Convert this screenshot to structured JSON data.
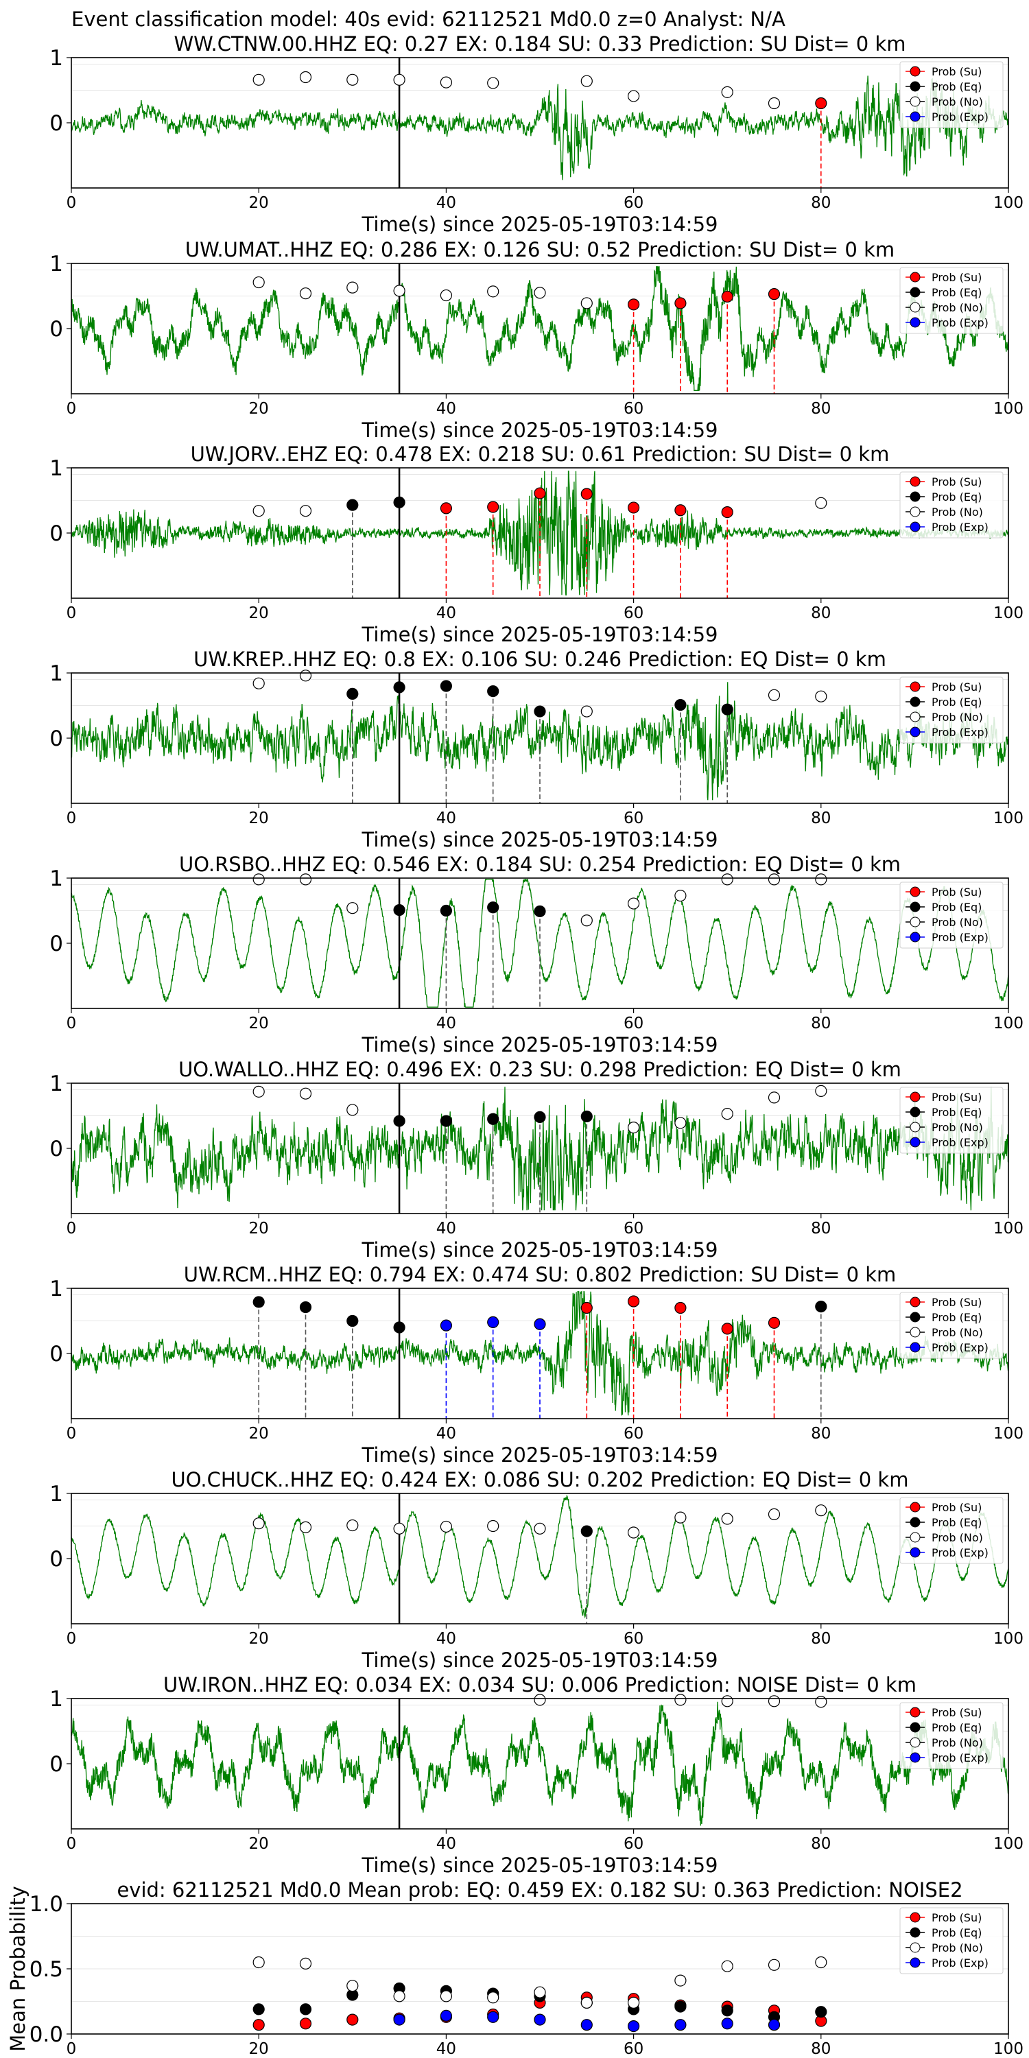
{
  "figure_title": "Event classification model: 40s evid: 62112521 Md0.0 z=0 Analyst: N/A",
  "legend": [
    {
      "label": "Prob (Su)",
      "color": "#ff0000"
    },
    {
      "label": "Prob (Eq)",
      "color": "#000000"
    },
    {
      "label": "Prob (No)",
      "color": "#ffffff"
    },
    {
      "label": "Prob (Exp)",
      "color": "#0000ff"
    }
  ],
  "colors": {
    "waveform": "#008000",
    "su": "#ff0000",
    "eq": "#000000",
    "no": "#ffffff",
    "exp": "#0000ff",
    "pick": "#000000"
  },
  "chart_data": [
    {
      "type": "line",
      "title": "WW.CTNW.00.HHZ   EQ: 0.27  EX: 0.184  SU: 0.33   Prediction: SU    Dist= 0 km",
      "xlabel": "Time(s) since 2025-05-19T03:14:59",
      "xlim": [
        0,
        100
      ],
      "ylim": [
        -1,
        1
      ],
      "xticks": [
        "0",
        "20",
        "40",
        "60",
        "80",
        "100"
      ],
      "yticks": [
        "1",
        "0"
      ],
      "pick_time": 35,
      "markers": [
        {
          "x": 20,
          "y": 0.66,
          "cls": "no"
        },
        {
          "x": 25,
          "y": 0.7,
          "cls": "no"
        },
        {
          "x": 30,
          "y": 0.66,
          "cls": "no"
        },
        {
          "x": 35,
          "y": 0.66,
          "cls": "no"
        },
        {
          "x": 40,
          "y": 0.62,
          "cls": "no"
        },
        {
          "x": 45,
          "y": 0.61,
          "cls": "no"
        },
        {
          "x": 55,
          "y": 0.64,
          "cls": "no"
        },
        {
          "x": 60,
          "y": 0.41,
          "cls": "no"
        },
        {
          "x": 70,
          "y": 0.47,
          "cls": "no"
        },
        {
          "x": 75,
          "y": 0.3,
          "cls": "no"
        },
        {
          "x": 80,
          "y": 0.3,
          "cls": "su"
        }
      ],
      "wave": {
        "seed": 11,
        "style": "noise",
        "base": 0.12,
        "bursts": [
          [
            50,
            56,
            0.45
          ],
          [
            80,
            100,
            0.4
          ]
        ],
        "clip": 0.9
      }
    },
    {
      "type": "line",
      "title": "UW.UMAT..HHZ   EQ: 0.286  EX: 0.126  SU: 0.52   Prediction: SU    Dist= 0 km",
      "xlabel": "Time(s) since 2025-05-19T03:14:59",
      "xlim": [
        0,
        100
      ],
      "ylim": [
        -1,
        1
      ],
      "xticks": [
        "0",
        "20",
        "40",
        "60",
        "80",
        "100"
      ],
      "yticks": [
        "1",
        "0"
      ],
      "pick_time": 35,
      "markers": [
        {
          "x": 20,
          "y": 0.71,
          "cls": "no"
        },
        {
          "x": 25,
          "y": 0.54,
          "cls": "no"
        },
        {
          "x": 30,
          "y": 0.63,
          "cls": "no"
        },
        {
          "x": 35,
          "y": 0.58,
          "cls": "no"
        },
        {
          "x": 40,
          "y": 0.51,
          "cls": "no"
        },
        {
          "x": 45,
          "y": 0.57,
          "cls": "no"
        },
        {
          "x": 50,
          "y": 0.55,
          "cls": "no"
        },
        {
          "x": 55,
          "y": 0.39,
          "cls": "no"
        },
        {
          "x": 60,
          "y": 0.37,
          "cls": "su"
        },
        {
          "x": 65,
          "y": 0.39,
          "cls": "su"
        },
        {
          "x": 70,
          "y": 0.49,
          "cls": "su"
        },
        {
          "x": 75,
          "y": 0.53,
          "cls": "su"
        }
      ],
      "wave": {
        "seed": 23,
        "style": "lowfreq",
        "base": 0.35,
        "bursts": [
          [
            60,
            75,
            0.4
          ]
        ],
        "clip": 0.95
      }
    },
    {
      "type": "line",
      "title": "UW.JORV..EHZ   EQ: 0.478  EX: 0.218  SU: 0.61   Prediction: SU    Dist= 0 km",
      "xlabel": "Time(s) since 2025-05-19T03:14:59",
      "xlim": [
        0,
        100
      ],
      "ylim": [
        -1,
        1
      ],
      "xticks": [
        "0",
        "20",
        "40",
        "60",
        "80",
        "100"
      ],
      "yticks": [
        "1",
        "0"
      ],
      "pick_time": 35,
      "markers": [
        {
          "x": 20,
          "y": 0.34,
          "cls": "no"
        },
        {
          "x": 25,
          "y": 0.34,
          "cls": "no"
        },
        {
          "x": 30,
          "y": 0.43,
          "cls": "eq"
        },
        {
          "x": 35,
          "y": 0.47,
          "cls": "eq"
        },
        {
          "x": 40,
          "y": 0.38,
          "cls": "su"
        },
        {
          "x": 45,
          "y": 0.4,
          "cls": "su"
        },
        {
          "x": 50,
          "y": 0.61,
          "cls": "su"
        },
        {
          "x": 55,
          "y": 0.6,
          "cls": "su"
        },
        {
          "x": 60,
          "y": 0.39,
          "cls": "su"
        },
        {
          "x": 65,
          "y": 0.35,
          "cls": "su"
        },
        {
          "x": 70,
          "y": 0.32,
          "cls": "su"
        },
        {
          "x": 80,
          "y": 0.46,
          "cls": "no"
        }
      ],
      "wave": {
        "seed": 37,
        "style": "quiet",
        "base": 0.05,
        "bursts": [
          [
            0,
            12,
            0.2
          ],
          [
            12,
            30,
            0.08
          ],
          [
            44,
            60,
            0.7
          ],
          [
            60,
            70,
            0.15
          ]
        ],
        "clip": 0.95
      }
    },
    {
      "type": "line",
      "title": "UW.KREP..HHZ   EQ: 0.8  EX: 0.106  SU: 0.246   Prediction: EQ    Dist= 0 km",
      "xlabel": "Time(s) since 2025-05-19T03:14:59",
      "xlim": [
        0,
        100
      ],
      "ylim": [
        -1,
        1
      ],
      "xticks": [
        "0",
        "20",
        "40",
        "60",
        "80",
        "100"
      ],
      "yticks": [
        "1",
        "0"
      ],
      "pick_time": 35,
      "markers": [
        {
          "x": 20,
          "y": 0.84,
          "cls": "no"
        },
        {
          "x": 25,
          "y": 0.96,
          "cls": "no"
        },
        {
          "x": 30,
          "y": 0.68,
          "cls": "eq"
        },
        {
          "x": 35,
          "y": 0.78,
          "cls": "eq"
        },
        {
          "x": 40,
          "y": 0.8,
          "cls": "eq"
        },
        {
          "x": 45,
          "y": 0.72,
          "cls": "eq"
        },
        {
          "x": 50,
          "y": 0.41,
          "cls": "eq"
        },
        {
          "x": 55,
          "y": 0.41,
          "cls": "no"
        },
        {
          "x": 65,
          "y": 0.51,
          "cls": "eq"
        },
        {
          "x": 70,
          "y": 0.44,
          "cls": "eq"
        },
        {
          "x": 75,
          "y": 0.66,
          "cls": "no"
        },
        {
          "x": 80,
          "y": 0.64,
          "cls": "no"
        }
      ],
      "wave": {
        "seed": 41,
        "style": "noise",
        "base": 0.3,
        "bursts": [
          [
            65,
            72,
            0.3
          ]
        ],
        "clip": 0.95
      }
    },
    {
      "type": "line",
      "title": "UO.RSBO..HHZ   EQ: 0.546  EX: 0.184  SU: 0.254   Prediction: EQ    Dist= 0 km",
      "xlabel": "Time(s) since 2025-05-19T03:14:59",
      "xlim": [
        0,
        100
      ],
      "ylim": [
        -1,
        1
      ],
      "xticks": [
        "0",
        "20",
        "40",
        "60",
        "80",
        "100"
      ],
      "yticks": [
        "1",
        "0"
      ],
      "pick_time": 35,
      "markers": [
        {
          "x": 20,
          "y": 0.98,
          "cls": "no"
        },
        {
          "x": 25,
          "y": 0.98,
          "cls": "no"
        },
        {
          "x": 30,
          "y": 0.54,
          "cls": "no"
        },
        {
          "x": 35,
          "y": 0.51,
          "cls": "eq"
        },
        {
          "x": 40,
          "y": 0.5,
          "cls": "eq"
        },
        {
          "x": 45,
          "y": 0.55,
          "cls": "eq"
        },
        {
          "x": 50,
          "y": 0.49,
          "cls": "eq"
        },
        {
          "x": 55,
          "y": 0.35,
          "cls": "no"
        },
        {
          "x": 60,
          "y": 0.61,
          "cls": "no"
        },
        {
          "x": 65,
          "y": 0.73,
          "cls": "no"
        },
        {
          "x": 70,
          "y": 0.98,
          "cls": "no"
        },
        {
          "x": 75,
          "y": 0.98,
          "cls": "no"
        },
        {
          "x": 80,
          "y": 0.98,
          "cls": "no"
        }
      ],
      "wave": {
        "seed": 53,
        "style": "sine",
        "base": 0.55,
        "bursts": [
          [
            33,
            50,
            0.4
          ]
        ],
        "clip": 0.98
      }
    },
    {
      "type": "line",
      "title": "UO.WALLO..HHZ   EQ: 0.496  EX: 0.23  SU: 0.298   Prediction: EQ    Dist= 0 km",
      "xlabel": "Time(s) since 2025-05-19T03:14:59",
      "xlim": [
        0,
        100
      ],
      "ylim": [
        -1,
        1
      ],
      "xticks": [
        "0",
        "20",
        "40",
        "60",
        "80",
        "100"
      ],
      "yticks": [
        "1",
        "0"
      ],
      "pick_time": 35,
      "markers": [
        {
          "x": 20,
          "y": 0.87,
          "cls": "no"
        },
        {
          "x": 25,
          "y": 0.84,
          "cls": "no"
        },
        {
          "x": 30,
          "y": 0.59,
          "cls": "no"
        },
        {
          "x": 35,
          "y": 0.42,
          "cls": "eq"
        },
        {
          "x": 40,
          "y": 0.42,
          "cls": "eq"
        },
        {
          "x": 45,
          "y": 0.45,
          "cls": "eq"
        },
        {
          "x": 50,
          "y": 0.48,
          "cls": "eq"
        },
        {
          "x": 55,
          "y": 0.49,
          "cls": "eq"
        },
        {
          "x": 60,
          "y": 0.32,
          "cls": "no"
        },
        {
          "x": 65,
          "y": 0.39,
          "cls": "no"
        },
        {
          "x": 70,
          "y": 0.53,
          "cls": "no"
        },
        {
          "x": 75,
          "y": 0.78,
          "cls": "no"
        },
        {
          "x": 80,
          "y": 0.88,
          "cls": "no"
        }
      ],
      "wave": {
        "seed": 67,
        "style": "noise",
        "base": 0.35,
        "bursts": [
          [
            44,
            57,
            0.45
          ],
          [
            90,
            100,
            0.3
          ]
        ],
        "clip": 0.95
      }
    },
    {
      "type": "line",
      "title": "UW.RCM..HHZ   EQ: 0.794  EX: 0.474  SU: 0.802   Prediction: SU    Dist= 0 km",
      "xlabel": "Time(s) since 2025-05-19T03:14:59",
      "xlim": [
        0,
        100
      ],
      "ylim": [
        -1,
        1
      ],
      "xticks": [
        "0",
        "20",
        "40",
        "60",
        "80",
        "100"
      ],
      "yticks": [
        "1",
        "0"
      ],
      "pick_time": 35,
      "markers": [
        {
          "x": 20,
          "y": 0.79,
          "cls": "eq"
        },
        {
          "x": 25,
          "y": 0.71,
          "cls": "eq"
        },
        {
          "x": 30,
          "y": 0.5,
          "cls": "eq"
        },
        {
          "x": 35,
          "y": 0.4,
          "cls": "eq"
        },
        {
          "x": 40,
          "y": 0.43,
          "cls": "exp"
        },
        {
          "x": 45,
          "y": 0.48,
          "cls": "exp"
        },
        {
          "x": 50,
          "y": 0.45,
          "cls": "exp"
        },
        {
          "x": 55,
          "y": 0.7,
          "cls": "su"
        },
        {
          "x": 60,
          "y": 0.8,
          "cls": "su"
        },
        {
          "x": 65,
          "y": 0.7,
          "cls": "su"
        },
        {
          "x": 70,
          "y": 0.38,
          "cls": "su"
        },
        {
          "x": 75,
          "y": 0.47,
          "cls": "su"
        },
        {
          "x": 80,
          "y": 0.72,
          "cls": "eq"
        }
      ],
      "wave": {
        "seed": 79,
        "style": "noise",
        "base": 0.15,
        "bursts": [
          [
            50,
            62,
            0.55
          ],
          [
            62,
            75,
            0.25
          ]
        ],
        "clip": 0.95
      }
    },
    {
      "type": "line",
      "title": "UO.CHUCK..HHZ   EQ: 0.424  EX: 0.086  SU: 0.202   Prediction: EQ    Dist= 0 km",
      "xlabel": "Time(s) since 2025-05-19T03:14:59",
      "xlim": [
        0,
        100
      ],
      "ylim": [
        -1,
        1
      ],
      "xticks": [
        "0",
        "20",
        "40",
        "60",
        "80",
        "100"
      ],
      "yticks": [
        "1",
        "0"
      ],
      "pick_time": 35,
      "markers": [
        {
          "x": 20,
          "y": 0.54,
          "cls": "no"
        },
        {
          "x": 25,
          "y": 0.48,
          "cls": "no"
        },
        {
          "x": 30,
          "y": 0.51,
          "cls": "no"
        },
        {
          "x": 35,
          "y": 0.46,
          "cls": "no"
        },
        {
          "x": 40,
          "y": 0.49,
          "cls": "no"
        },
        {
          "x": 45,
          "y": 0.5,
          "cls": "no"
        },
        {
          "x": 50,
          "y": 0.46,
          "cls": "no"
        },
        {
          "x": 55,
          "y": 0.42,
          "cls": "eq"
        },
        {
          "x": 60,
          "y": 0.4,
          "cls": "no"
        },
        {
          "x": 65,
          "y": 0.63,
          "cls": "no"
        },
        {
          "x": 70,
          "y": 0.61,
          "cls": "no"
        },
        {
          "x": 75,
          "y": 0.68,
          "cls": "no"
        },
        {
          "x": 80,
          "y": 0.74,
          "cls": "no"
        }
      ],
      "wave": {
        "seed": 83,
        "style": "sine",
        "base": 0.45,
        "bursts": [
          [
            52,
            57,
            0.4
          ]
        ],
        "clip": 0.98
      }
    },
    {
      "type": "line",
      "title": "UW.IRON..HHZ   EQ: 0.034  EX: 0.034  SU: 0.006   Prediction: NOISE    Dist= 0 km",
      "xlabel": "Time(s) since 2025-05-19T03:14:59",
      "xlim": [
        0,
        100
      ],
      "ylim": [
        -1,
        1
      ],
      "xticks": [
        "0",
        "20",
        "40",
        "60",
        "80",
        "100"
      ],
      "yticks": [
        "1",
        "0"
      ],
      "pick_time": 35,
      "markers": [
        {
          "x": 50,
          "y": 0.98,
          "cls": "no"
        },
        {
          "x": 65,
          "y": 0.98,
          "cls": "no"
        },
        {
          "x": 70,
          "y": 0.96,
          "cls": "no"
        },
        {
          "x": 75,
          "y": 0.96,
          "cls": "no"
        },
        {
          "x": 80,
          "y": 0.95,
          "cls": "no"
        }
      ],
      "wave": {
        "seed": 97,
        "style": "lowfreq",
        "base": 0.4,
        "bursts": [
          [
            55,
            75,
            0.2
          ]
        ],
        "clip": 0.95
      }
    },
    {
      "type": "scatter",
      "title": "evid: 62112521  Md0.0   Mean prob:    EQ: 0.459  EX: 0.182  SU: 0.363    Prediction: NOISE2",
      "ylabel": "Mean Probability",
      "xlim": [
        0,
        100
      ],
      "ylim": [
        0,
        1
      ],
      "xticks": [
        "0",
        "20",
        "40",
        "60",
        "80",
        "100"
      ],
      "yticks": [
        "1.0",
        "0.5",
        "0.0"
      ],
      "series": [
        {
          "name": "Prob (Su)",
          "cls": "su",
          "x": [
            20,
            25,
            30,
            35,
            40,
            45,
            50,
            55,
            60,
            65,
            70,
            75,
            80
          ],
          "y": [
            0.07,
            0.08,
            0.11,
            0.12,
            0.13,
            0.15,
            0.24,
            0.28,
            0.27,
            0.22,
            0.21,
            0.18,
            0.1
          ]
        },
        {
          "name": "Prob (Eq)",
          "cls": "eq",
          "x": [
            20,
            25,
            30,
            35,
            40,
            45,
            50,
            55,
            60,
            65,
            70,
            75,
            80
          ],
          "y": [
            0.19,
            0.19,
            0.3,
            0.35,
            0.33,
            0.31,
            0.29,
            0.24,
            0.19,
            0.21,
            0.18,
            0.13,
            0.17
          ]
        },
        {
          "name": "Prob (No)",
          "cls": "no",
          "x": [
            20,
            25,
            30,
            35,
            40,
            45,
            50,
            55,
            60,
            65,
            70,
            75,
            80
          ],
          "y": [
            0.55,
            0.54,
            0.37,
            0.29,
            0.29,
            0.28,
            0.32,
            0.24,
            0.24,
            0.41,
            0.52,
            0.53,
            0.55
          ]
        },
        {
          "name": "Prob (Exp)",
          "cls": "exp",
          "x": [
            20,
            25,
            30,
            35,
            40,
            45,
            50,
            55,
            60,
            65,
            70,
            75,
            80
          ],
          "y": [
            0.0,
            0.0,
            0.0,
            0.11,
            0.14,
            0.13,
            0.11,
            0.07,
            0.06,
            0.07,
            0.08,
            0.07,
            0.0
          ]
        }
      ]
    }
  ]
}
